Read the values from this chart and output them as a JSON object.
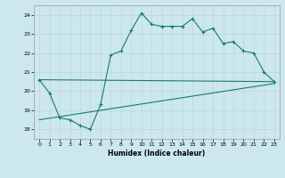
{
  "xlabel": "Humidex (Indice chaleur)",
  "bg_color": "#cce8ee",
  "grid_color": "#b8d8de",
  "line_color": "#1a7a6e",
  "xlim": [
    -0.5,
    23.5
  ],
  "ylim": [
    17.5,
    24.5
  ],
  "yticks": [
    18,
    19,
    20,
    21,
    22,
    23,
    24
  ],
  "xticks": [
    0,
    1,
    2,
    3,
    4,
    5,
    6,
    7,
    8,
    9,
    10,
    11,
    12,
    13,
    14,
    15,
    16,
    17,
    18,
    19,
    20,
    21,
    22,
    23
  ],
  "line1_x": [
    0,
    1,
    2,
    3,
    4,
    5,
    6,
    7,
    8,
    9,
    10,
    11,
    12,
    13,
    14,
    15,
    16,
    17,
    18,
    19,
    20,
    21,
    22,
    23
  ],
  "line1_y": [
    20.6,
    19.9,
    18.6,
    18.5,
    18.2,
    18.0,
    19.3,
    21.9,
    22.1,
    23.2,
    24.1,
    23.5,
    23.4,
    23.4,
    23.4,
    23.8,
    23.1,
    23.3,
    22.5,
    22.6,
    22.1,
    22.0,
    21.0,
    20.5
  ],
  "line2_x": [
    0,
    23
  ],
  "line2_y": [
    20.6,
    20.5
  ],
  "line3_x": [
    0,
    23
  ],
  "line3_y": [
    18.5,
    20.4
  ]
}
